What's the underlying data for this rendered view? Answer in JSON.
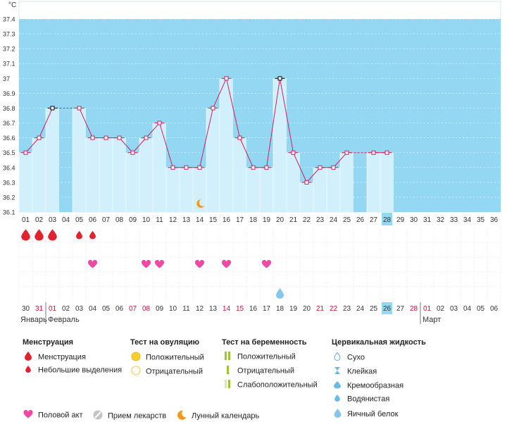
{
  "chart_data": {
    "type": "line",
    "unit_label": "°C",
    "ylim": [
      36.1,
      37.4
    ],
    "y_ticks": [
      "36.1",
      "36.2",
      "36.3",
      "36.4",
      "36.5",
      "36.6",
      "36.7",
      "36.8",
      "36.9",
      "37",
      "37.1",
      "37.2",
      "37.3",
      "37.4"
    ],
    "x": [
      "01",
      "02",
      "03",
      "04",
      "05",
      "06",
      "07",
      "08",
      "09",
      "10",
      "11",
      "12",
      "13",
      "14",
      "15",
      "16",
      "17",
      "18",
      "19",
      "20",
      "21",
      "22",
      "23",
      "24",
      "25",
      "26",
      "27",
      "28",
      "29",
      "30",
      "31",
      "32",
      "33",
      "34",
      "35",
      "36"
    ],
    "values": [
      36.5,
      36.6,
      36.8,
      null,
      36.8,
      36.6,
      36.6,
      36.6,
      36.5,
      36.6,
      36.7,
      36.4,
      36.4,
      36.4,
      36.8,
      37.0,
      36.6,
      36.4,
      36.4,
      37.0,
      36.5,
      36.3,
      36.4,
      36.4,
      36.5,
      null,
      36.5,
      36.5,
      null,
      null,
      null,
      null,
      null,
      null,
      null,
      null
    ],
    "highlight_day": "28",
    "menstruation_days": [
      1,
      2,
      3,
      5,
      6
    ],
    "menstruation_heavy": [
      1,
      2,
      3
    ],
    "intercourse_days": [
      6,
      10,
      11,
      14,
      16,
      19
    ],
    "moon_day": 14,
    "fluid_day": 20,
    "dates": [
      "30",
      "31",
      "01",
      "02",
      "03",
      "04",
      "05",
      "06",
      "07",
      "08",
      "09",
      "10",
      "11",
      "12",
      "13",
      "14",
      "15",
      "16",
      "17",
      "18",
      "19",
      "20",
      "21",
      "22",
      "23",
      "24",
      "25",
      "26",
      "27",
      "28",
      "01",
      "02",
      "03",
      "04",
      "05",
      "06"
    ],
    "date_red": [
      1,
      2,
      8,
      9,
      15,
      16,
      22,
      23,
      29,
      30
    ],
    "months": [
      {
        "label": "Январь"
      },
      {
        "label": "Февраль"
      },
      {
        "label": "Март"
      }
    ]
  },
  "colors": {
    "sky": "#93d7f3",
    "bar": "#d2effc",
    "bar_edge": "#ffffff",
    "line": "#d11e5c",
    "marker": "#d11e5c",
    "highlight": "#93d7f3",
    "red_text": "#cc1133",
    "heart": "#ee4aa5",
    "drop": "#e0242f"
  },
  "legend": {
    "menstruation": {
      "title": "Менструация",
      "items": [
        "Менструация",
        "Небольшие выделения"
      ]
    },
    "ovulation_test": {
      "title": "Тест на овуляцию",
      "items": [
        "Положительный",
        "Отрицательный"
      ]
    },
    "pregnancy_test": {
      "title": "Тест на беременность",
      "items": [
        "Положительный",
        "Отрицательный",
        "Слабоположительный"
      ]
    },
    "cervical_fluid": {
      "title": "Цервикальная жидкость",
      "items": [
        "Сухо",
        "Клейкая",
        "Кремообразная",
        "Водянистая",
        "Яичный белок"
      ]
    },
    "other": {
      "intercourse": "Половой акт",
      "medication": "Прием лекарств",
      "lunar": "Лунный календарь"
    }
  }
}
